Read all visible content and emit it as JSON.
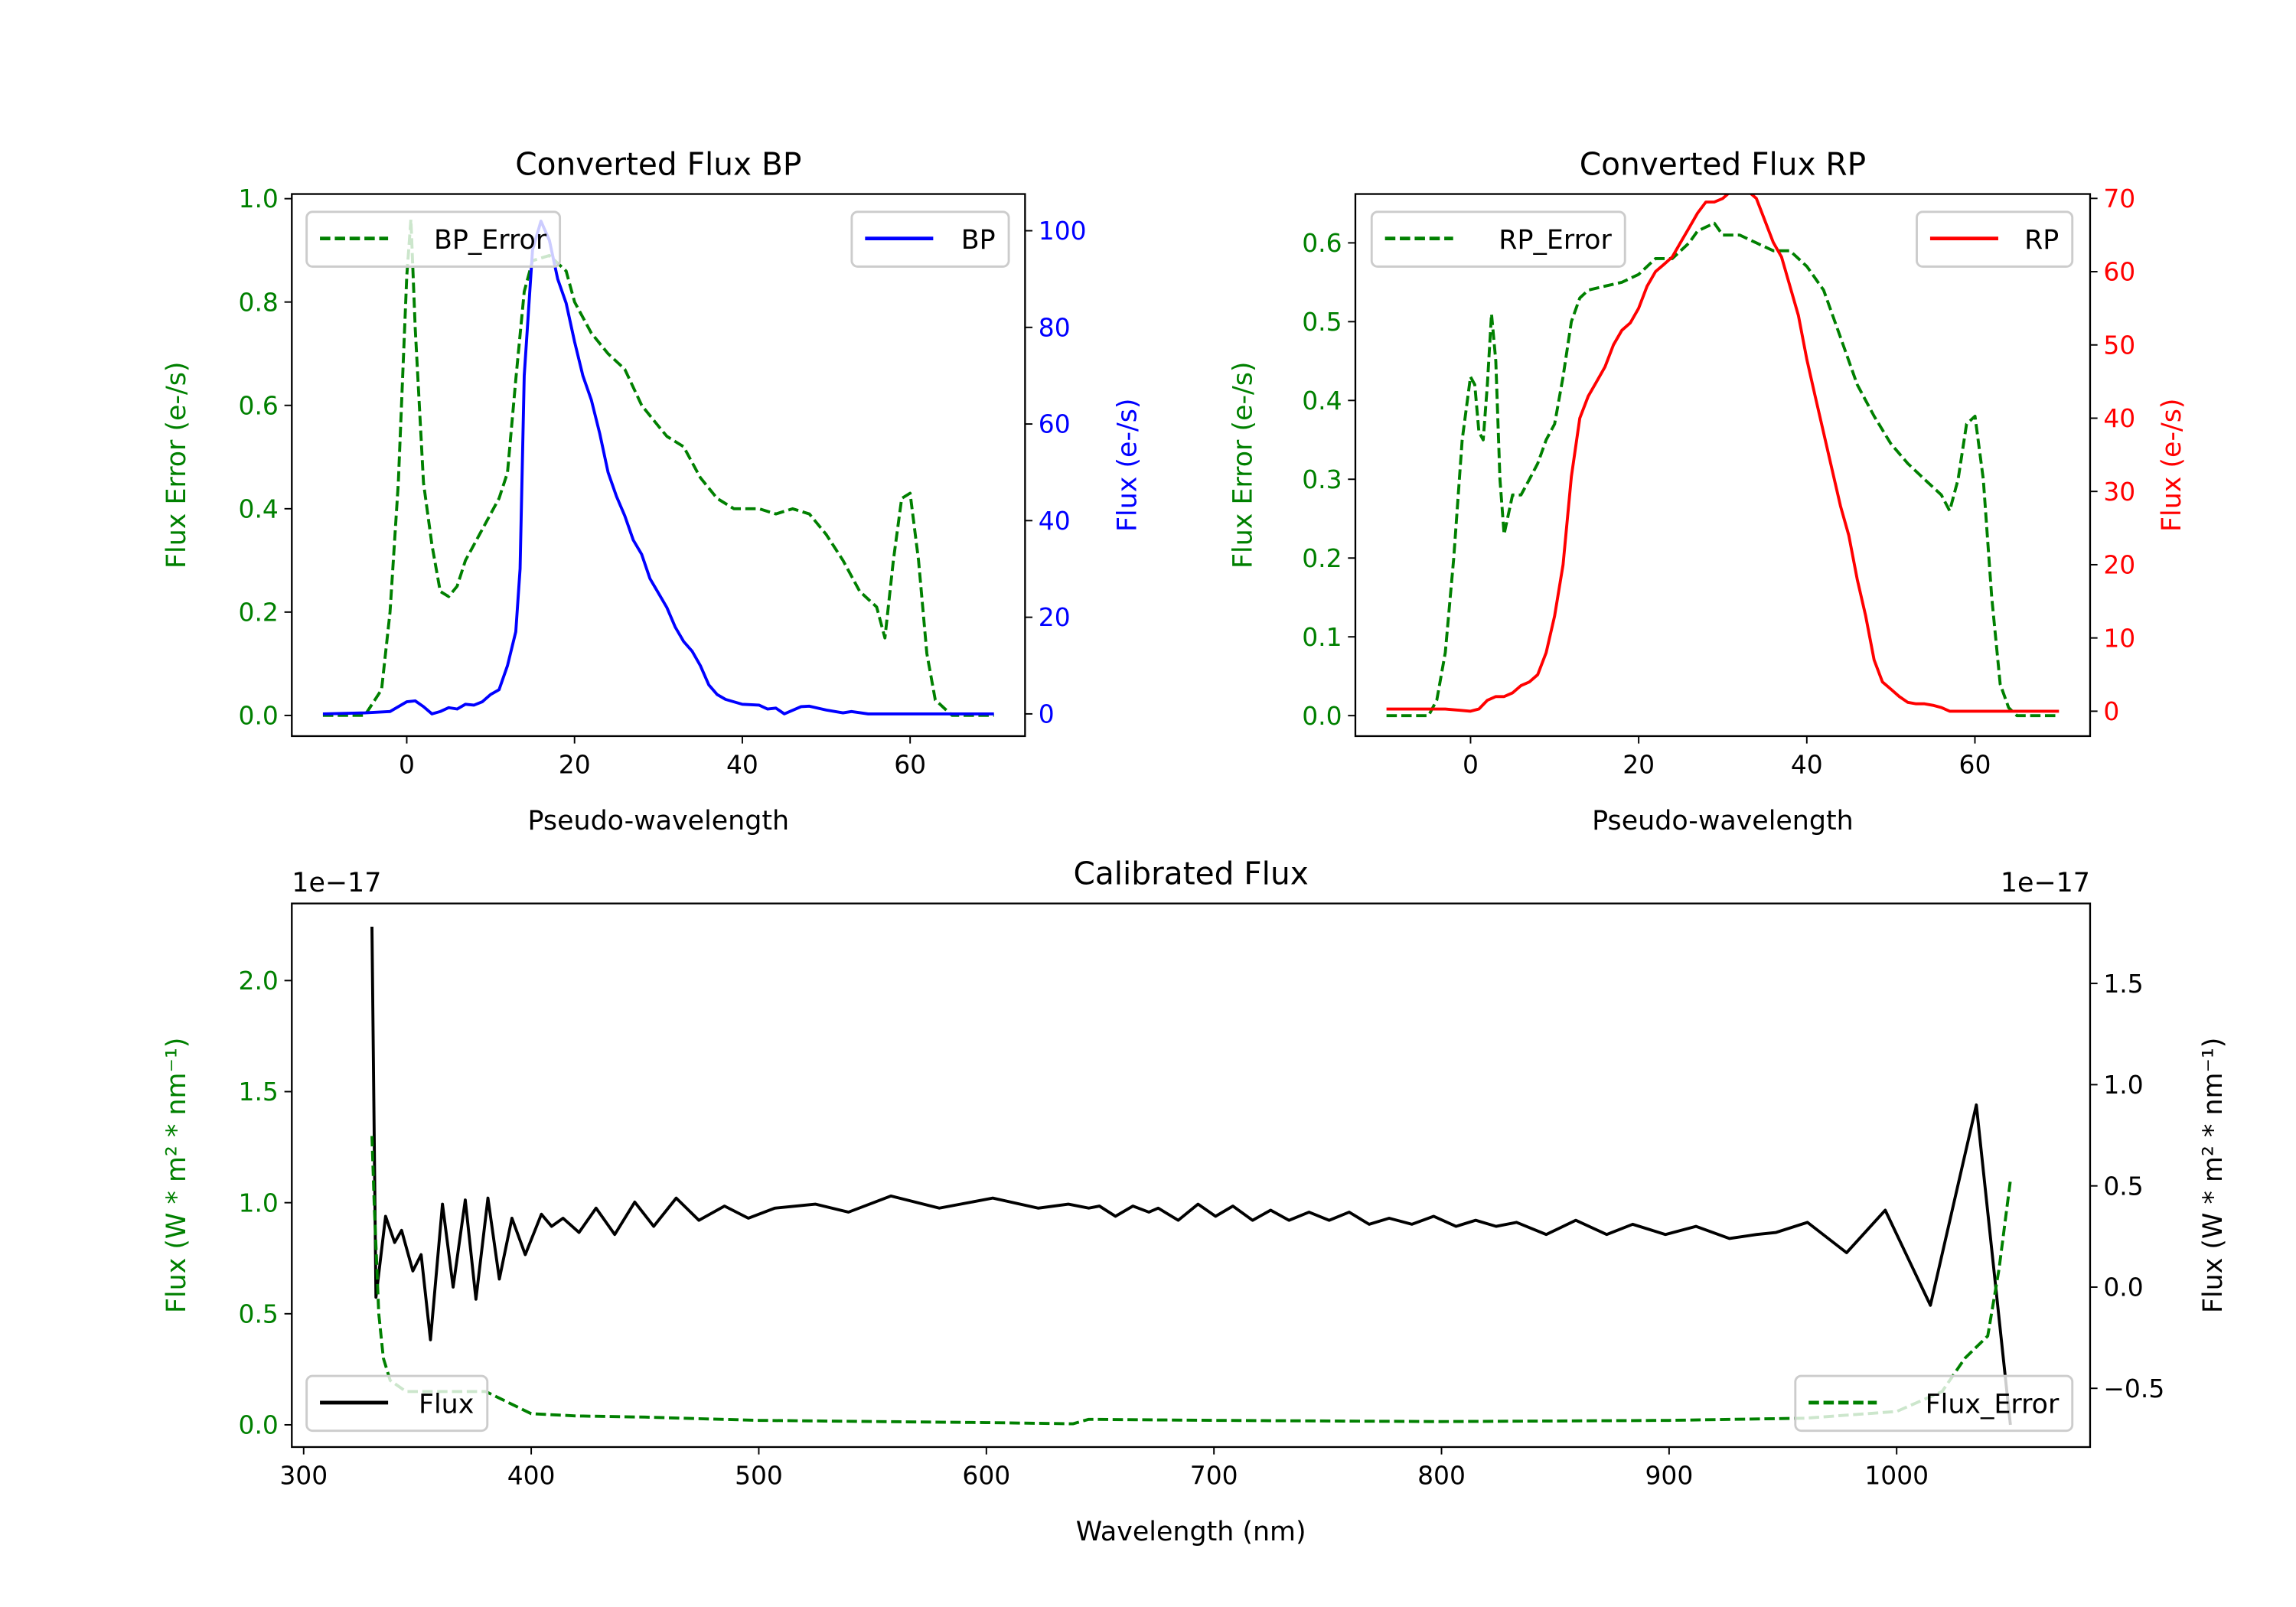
{
  "chart_data": [
    {
      "id": "bp",
      "type": "line",
      "title": "Converted Flux BP",
      "xlabel": "Pseudo-wavelength",
      "ylabel_left": "Flux Error (e-/s)",
      "ylabel_right": "Flux (e-/s)",
      "xlim": [
        -13.7,
        73.7
      ],
      "ylim_left": [
        -0.04,
        1.009
      ],
      "ylim_right": [
        -4.6,
        107.6
      ],
      "xticks": [
        0,
        20,
        40,
        60
      ],
      "yticks_left": [
        "0.0",
        "0.2",
        "0.4",
        "0.6",
        "0.8",
        "1.0"
      ],
      "yticks_right": [
        "0",
        "20",
        "40",
        "60",
        "80",
        "100"
      ],
      "left_color": "#008000",
      "right_color": "#0000ff",
      "series": [
        {
          "name": "BP_Error",
          "axis": "left",
          "color": "#008000",
          "style": "dashed",
          "legend": "upper left",
          "x": [
            -10,
            -5,
            -3,
            -2,
            -1,
            0,
            0.5,
            1,
            2,
            3,
            4,
            5,
            6,
            7,
            9,
            11,
            12,
            13,
            14,
            15,
            17,
            19,
            20,
            22,
            24,
            26,
            28,
            30,
            31,
            33,
            35,
            37,
            39,
            42,
            44,
            46,
            48,
            50,
            52,
            54,
            56,
            57,
            58,
            59,
            60,
            61,
            62,
            63,
            65,
            70
          ],
          "y": [
            0,
            0,
            0.05,
            0.2,
            0.45,
            0.85,
            0.96,
            0.75,
            0.45,
            0.33,
            0.24,
            0.23,
            0.25,
            0.3,
            0.36,
            0.42,
            0.47,
            0.65,
            0.82,
            0.88,
            0.89,
            0.86,
            0.8,
            0.74,
            0.7,
            0.67,
            0.6,
            0.56,
            0.54,
            0.52,
            0.46,
            0.42,
            0.4,
            0.4,
            0.39,
            0.4,
            0.39,
            0.35,
            0.3,
            0.24,
            0.21,
            0.15,
            0.3,
            0.42,
            0.43,
            0.3,
            0.12,
            0.03,
            0,
            0
          ]
        },
        {
          "name": "BP",
          "axis": "right",
          "color": "#0000ff",
          "style": "solid",
          "legend": "upper right",
          "x": [
            -10,
            -5,
            -2,
            0,
            1,
            2,
            3,
            4,
            5,
            6,
            7,
            8,
            9,
            10,
            11,
            12,
            13,
            13.5,
            14,
            15,
            16,
            17,
            18,
            19,
            20,
            21,
            22,
            23,
            24,
            25,
            26,
            27,
            28,
            29,
            30,
            31,
            32,
            33,
            34,
            35,
            36,
            37,
            38,
            40,
            42,
            43,
            44,
            45,
            47,
            48,
            50,
            52,
            53,
            55,
            60,
            70
          ],
          "y": [
            0,
            0.2,
            0.5,
            2.5,
            2.7,
            1.5,
            0,
            0.5,
            1.3,
            1,
            2,
            1.8,
            2.5,
            4,
            5,
            10,
            17,
            30,
            70,
            96,
            102,
            98,
            90,
            85,
            77,
            70,
            65,
            58,
            50,
            45,
            41,
            36,
            33,
            28,
            25,
            22,
            18,
            15,
            13,
            10,
            6,
            4,
            3,
            2,
            1.8,
            1,
            1.2,
            0,
            1.5,
            1.6,
            0.8,
            0.2,
            0.5,
            0,
            0,
            0
          ]
        }
      ]
    },
    {
      "id": "rp",
      "type": "line",
      "title": "Converted Flux RP",
      "xlabel": "Pseudo-wavelength",
      "ylabel_left": "Flux Error (e-/s)",
      "ylabel_right": "Flux (e-/s)",
      "xlim": [
        -13.7,
        73.7
      ],
      "ylim_left": [
        -0.026,
        0.662
      ],
      "ylim_right": [
        -3.4,
        70.6
      ],
      "xticks": [
        0,
        20,
        40,
        60
      ],
      "yticks_left": [
        "0.0",
        "0.1",
        "0.2",
        "0.3",
        "0.4",
        "0.5",
        "0.6"
      ],
      "yticks_right": [
        "0",
        "10",
        "20",
        "30",
        "40",
        "50",
        "60",
        "70"
      ],
      "left_color": "#008000",
      "right_color": "#ff0000",
      "series": [
        {
          "name": "RP_Error",
          "axis": "left",
          "color": "#008000",
          "style": "dashed",
          "legend": "upper left",
          "x": [
            -10,
            -5,
            -4,
            -3,
            -2,
            -1,
            0,
            0.5,
            1,
            1.5,
            2,
            2.5,
            3,
            3.5,
            4,
            5,
            6,
            7,
            8,
            9,
            10,
            11,
            12,
            13,
            14,
            16,
            18,
            20,
            22,
            24,
            26,
            27,
            28,
            29,
            30,
            32,
            34,
            36,
            38,
            40,
            42,
            44,
            46,
            48,
            50,
            52,
            54,
            55,
            56,
            57,
            58,
            59,
            60,
            61,
            62,
            63,
            64,
            65,
            70
          ],
          "y": [
            0,
            0,
            0.02,
            0.08,
            0.2,
            0.35,
            0.43,
            0.42,
            0.36,
            0.35,
            0.42,
            0.51,
            0.45,
            0.3,
            0.23,
            0.28,
            0.28,
            0.3,
            0.32,
            0.35,
            0.37,
            0.43,
            0.5,
            0.53,
            0.54,
            0.545,
            0.55,
            0.56,
            0.58,
            0.58,
            0.6,
            0.615,
            0.62,
            0.625,
            0.61,
            0.61,
            0.6,
            0.59,
            0.59,
            0.57,
            0.54,
            0.48,
            0.42,
            0.38,
            0.345,
            0.32,
            0.3,
            0.29,
            0.28,
            0.26,
            0.3,
            0.37,
            0.38,
            0.3,
            0.15,
            0.04,
            0.01,
            0,
            0
          ]
        },
        {
          "name": "RP",
          "axis": "right",
          "color": "#ff0000",
          "style": "solid",
          "legend": "upper right",
          "x": [
            -10,
            -3,
            0,
            1,
            2,
            3,
            4,
            5,
            6,
            7,
            8,
            9,
            10,
            11,
            12,
            13,
            14,
            15,
            16,
            17,
            18,
            19,
            20,
            21,
            22,
            23,
            24,
            25,
            26,
            27,
            28,
            29,
            30,
            31,
            32,
            33,
            34,
            35,
            36,
            37,
            38,
            39,
            40,
            41,
            42,
            43,
            44,
            45,
            46,
            47,
            48,
            49,
            50,
            51,
            52,
            53,
            54,
            55,
            56,
            57,
            60,
            70
          ],
          "y": [
            0.3,
            0.3,
            0,
            0.3,
            1.5,
            2,
            2,
            2.5,
            3.5,
            4,
            5,
            8,
            13,
            20,
            32,
            40,
            43,
            45,
            47,
            50,
            52,
            53,
            55,
            58,
            60,
            61,
            62,
            64,
            66,
            68,
            69.5,
            69.5,
            70,
            71,
            71.5,
            71,
            70,
            67,
            64,
            62,
            58,
            54,
            48,
            43,
            38,
            33,
            28,
            24,
            18,
            13,
            7,
            4,
            3,
            2,
            1.2,
            1,
            1,
            0.8,
            0.5,
            0,
            0,
            0
          ]
        }
      ]
    },
    {
      "id": "cal",
      "type": "line",
      "title": "Calibrated Flux",
      "xlabel": "Wavelength (nm)",
      "ylabel_left": "Flux (W * m² * nm⁻¹)",
      "ylabel_right": "Flux (W * m² * nm⁻¹)",
      "offset_left": "1e−17",
      "offset_right": "1e−17",
      "xlim": [
        294.8,
        1085
      ],
      "ylim_left": [
        -0.1,
        2.347
      ],
      "ylim_right": [
        -0.79,
        1.895
      ],
      "xticks": [
        300,
        400,
        500,
        600,
        700,
        800,
        900,
        1000
      ],
      "yticks_left": [
        "0.0",
        "0.5",
        "1.0",
        "1.5",
        "2.0"
      ],
      "yticks_right": [
        "−0.5",
        "0.0",
        "0.5",
        "1.0",
        "1.5"
      ],
      "left_color": "#008000",
      "right_color": "#000000",
      "series": [
        {
          "name": "Flux",
          "axis": "right",
          "color": "#000000",
          "style": "solid",
          "legend": "lower left",
          "x": [
            330,
            331.8,
            336,
            340,
            343,
            348,
            351.6,
            355.7,
            361,
            365.7,
            371,
            375.7,
            381,
            386,
            391.5,
            397.4,
            404.5,
            409,
            414,
            421,
            428.5,
            436.7,
            445.5,
            453.8,
            463.7,
            473.7,
            484.9,
            495.4,
            507,
            524.8,
            539.4,
            558,
            579.3,
            602.8,
            622.7,
            636,
            645,
            649.7,
            656.7,
            664.4,
            671.4,
            675.5,
            684.3,
            693,
            700.7,
            708.3,
            717,
            724.9,
            733,
            741.8,
            750.6,
            759.4,
            768.2,
            777,
            787,
            796.5,
            806.4,
            815,
            824,
            833,
            846,
            859,
            872.6,
            884,
            898.4,
            911.8,
            926.5,
            938.5,
            947,
            960.8,
            978,
            995,
            1014.8,
            1035,
            1050
          ],
          "y": [
            1.78,
            -0.05,
            0.35,
            0.22,
            0.28,
            0.08,
            0.16,
            -0.26,
            0.41,
            0,
            0.43,
            -0.06,
            0.44,
            0.04,
            0.34,
            0.16,
            0.36,
            0.3,
            0.34,
            0.27,
            0.39,
            0.26,
            0.42,
            0.3,
            0.44,
            0.33,
            0.4,
            0.34,
            0.39,
            0.41,
            0.37,
            0.45,
            0.39,
            0.44,
            0.39,
            0.41,
            0.39,
            0.4,
            0.35,
            0.4,
            0.37,
            0.39,
            0.33,
            0.41,
            0.35,
            0.4,
            0.33,
            0.38,
            0.33,
            0.37,
            0.33,
            0.37,
            0.31,
            0.34,
            0.31,
            0.35,
            0.3,
            0.33,
            0.3,
            0.32,
            0.26,
            0.33,
            0.26,
            0.31,
            0.26,
            0.3,
            0.24,
            0.26,
            0.27,
            0.32,
            0.17,
            0.38,
            -0.09,
            0.9,
            -0.68
          ]
        },
        {
          "name": "Flux_Error",
          "axis": "left",
          "color": "#008000",
          "style": "dashed",
          "legend": "lower right",
          "x": [
            330,
            331,
            333,
            335,
            338,
            345,
            360,
            380,
            390,
            400,
            420,
            450,
            500,
            600,
            638,
            645,
            700,
            800,
            900,
            960,
            1000,
            1020,
            1030,
            1040,
            1045,
            1050
          ],
          "y": [
            1.3,
            1.0,
            0.5,
            0.3,
            0.2,
            0.15,
            0.15,
            0.15,
            0.1,
            0.05,
            0.04,
            0.035,
            0.02,
            0.01,
            0.005,
            0.025,
            0.02,
            0.015,
            0.02,
            0.03,
            0.06,
            0.15,
            0.3,
            0.4,
            0.7,
            1.1
          ]
        }
      ]
    }
  ]
}
